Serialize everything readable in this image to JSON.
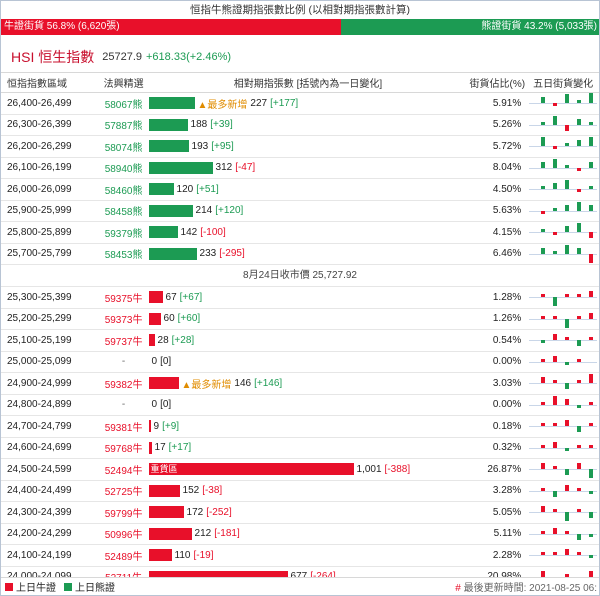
{
  "title": "恒指牛熊證期指張數比例 (以相對期指張數計算)",
  "ratio": {
    "bull_label": "牛證街貨 56.8% (6,620張)",
    "bear_label": "熊證街貨 43.2% (5,033張)",
    "bull_pct": 56.8,
    "bear_pct": 43.2
  },
  "hsi": {
    "name": "HSI 恒生指數",
    "value": "25727.9",
    "change": "+618.33(+2.46%)"
  },
  "headers": {
    "range": "恒指指數區域",
    "pick": "法興精選",
    "contracts": "相對期指張數 [括號內為一日變化]",
    "street_pct": "街貨佔比(%)",
    "five_day": "五日街貨變化"
  },
  "bear_rows": [
    {
      "range": "26,400-26,499",
      "code": "58067熊",
      "count": "227",
      "change": "[+177]",
      "change_dir": "up",
      "tag": "▲最多新增",
      "pct": "5.91%",
      "bar": 227,
      "spark": [
        2,
        -1,
        3,
        1,
        4
      ]
    },
    {
      "range": "26,300-26,399",
      "code": "57887熊",
      "count": "188",
      "change": "[+39]",
      "change_dir": "up",
      "tag": "",
      "pct": "5.26%",
      "bar": 188,
      "spark": [
        1,
        3,
        -2,
        2,
        1
      ]
    },
    {
      "range": "26,200-26,299",
      "code": "58074熊",
      "count": "193",
      "change": "[+95]",
      "change_dir": "up",
      "tag": "",
      "pct": "5.72%",
      "bar": 193,
      "spark": [
        3,
        -1,
        1,
        2,
        3
      ]
    },
    {
      "range": "26,100-26,199",
      "code": "58940熊",
      "count": "312",
      "change": "[-47]",
      "change_dir": "down",
      "tag": "",
      "pct": "8.04%",
      "bar": 312,
      "spark": [
        2,
        3,
        1,
        -1,
        2
      ]
    },
    {
      "range": "26,000-26,099",
      "code": "58460熊",
      "count": "120",
      "change": "[+51]",
      "change_dir": "up",
      "tag": "",
      "pct": "4.50%",
      "bar": 120,
      "spark": [
        1,
        2,
        3,
        -1,
        1
      ]
    },
    {
      "range": "25,900-25,999",
      "code": "58458熊",
      "count": "214",
      "change": "[+120]",
      "change_dir": "up",
      "tag": "",
      "pct": "5.63%",
      "bar": 214,
      "spark": [
        -1,
        1,
        2,
        3,
        2
      ]
    },
    {
      "range": "25,800-25,899",
      "code": "59379熊",
      "count": "142",
      "change": "[-100]",
      "change_dir": "down",
      "tag": "",
      "pct": "4.15%",
      "bar": 142,
      "spark": [
        1,
        -1,
        2,
        3,
        -2
      ]
    },
    {
      "range": "25,700-25,799",
      "code": "58453熊",
      "count": "233",
      "change": "[-295]",
      "change_dir": "down",
      "tag": "",
      "pct": "6.46%",
      "bar": 233,
      "spark": [
        2,
        1,
        3,
        2,
        -3
      ]
    }
  ],
  "close_label": "8月24日收市價 25,727.92",
  "bull_rows": [
    {
      "range": "25,300-25,399",
      "code": "59375牛",
      "count": "67",
      "change": "[+67]",
      "change_dir": "up",
      "tag": "",
      "heavy": "",
      "pct": "1.28%",
      "bar": 67,
      "spark": [
        1,
        -3,
        1,
        1,
        2
      ]
    },
    {
      "range": "25,200-25,299",
      "code": "59373牛",
      "count": "60",
      "change": "[+60]",
      "change_dir": "up",
      "tag": "",
      "heavy": "",
      "pct": "1.26%",
      "bar": 60,
      "spark": [
        1,
        1,
        -3,
        1,
        2
      ]
    },
    {
      "range": "25,100-25,199",
      "code": "59737牛",
      "count": "28",
      "change": "[+28]",
      "change_dir": "up",
      "tag": "",
      "heavy": "",
      "pct": "0.54%",
      "bar": 28,
      "spark": [
        -1,
        2,
        1,
        -2,
        1
      ]
    },
    {
      "range": "25,000-25,099",
      "code": "-",
      "count": "0",
      "change": "[0]",
      "change_dir": "none",
      "tag": "",
      "heavy": "",
      "pct": "0.00%",
      "bar": 0,
      "spark": [
        1,
        2,
        -1,
        1,
        0
      ]
    },
    {
      "range": "24,900-24,999",
      "code": "59382牛",
      "count": "146",
      "change": "[+146]",
      "change_dir": "up",
      "tag": "▲最多新增",
      "heavy": "",
      "pct": "3.03%",
      "bar": 146,
      "spark": [
        2,
        1,
        -2,
        1,
        3
      ]
    },
    {
      "range": "24,800-24,899",
      "code": "-",
      "count": "0",
      "change": "[0]",
      "change_dir": "none",
      "tag": "",
      "heavy": "",
      "pct": "0.00%",
      "bar": 0,
      "spark": [
        1,
        3,
        2,
        -1,
        1
      ]
    },
    {
      "range": "24,700-24,799",
      "code": "59381牛",
      "count": "9",
      "change": "[+9]",
      "change_dir": "up",
      "tag": "",
      "heavy": "",
      "pct": "0.18%",
      "bar": 9,
      "spark": [
        1,
        1,
        2,
        -2,
        1
      ]
    },
    {
      "range": "24,600-24,699",
      "code": "59768牛",
      "count": "17",
      "change": "[+17]",
      "change_dir": "up",
      "tag": "",
      "heavy": "",
      "pct": "0.32%",
      "bar": 17,
      "spark": [
        1,
        2,
        -1,
        1,
        1
      ]
    },
    {
      "range": "24,500-24,599",
      "code": "52494牛",
      "count": "1,001",
      "change": "[-388]",
      "change_dir": "down",
      "tag": "",
      "heavy": "重貨區",
      "pct": "26.87%",
      "bar": 1001,
      "spark": [
        2,
        1,
        -2,
        2,
        -3
      ]
    },
    {
      "range": "24,400-24,499",
      "code": "52725牛",
      "count": "152",
      "change": "[-38]",
      "change_dir": "down",
      "tag": "",
      "heavy": "",
      "pct": "3.28%",
      "bar": 152,
      "spark": [
        1,
        -2,
        2,
        1,
        -1
      ]
    },
    {
      "range": "24,300-24,399",
      "code": "59799牛",
      "count": "172",
      "change": "[-252]",
      "change_dir": "down",
      "tag": "",
      "heavy": "",
      "pct": "5.05%",
      "bar": 172,
      "spark": [
        2,
        1,
        -3,
        1,
        -2
      ]
    },
    {
      "range": "24,200-24,299",
      "code": "50996牛",
      "count": "212",
      "change": "[-181]",
      "change_dir": "down",
      "tag": "",
      "heavy": "",
      "pct": "5.11%",
      "bar": 212,
      "spark": [
        1,
        2,
        1,
        -2,
        -1
      ]
    },
    {
      "range": "24,100-24,199",
      "code": "52489牛",
      "count": "110",
      "change": "[-19]",
      "change_dir": "down",
      "tag": "",
      "heavy": "",
      "pct": "2.28%",
      "bar": 110,
      "spark": [
        1,
        1,
        2,
        1,
        -1
      ]
    },
    {
      "range": "24,000-24,099",
      "code": "52711牛",
      "count": "677",
      "change": "[-264]",
      "change_dir": "down",
      "tag": "",
      "heavy": "",
      "pct": "20.98%",
      "bar": 677,
      "spark": [
        2,
        -1,
        1,
        -2,
        2
      ]
    }
  ],
  "footer": {
    "legend_bull": "上日牛證",
    "legend_bear": "上日熊證",
    "update": "最後更新時間: 2021-08-25 06:",
    "hash": "#"
  },
  "colors": {
    "bull": "#e8102a",
    "bear": "#1c9b53",
    "tag": "#e08c00"
  }
}
